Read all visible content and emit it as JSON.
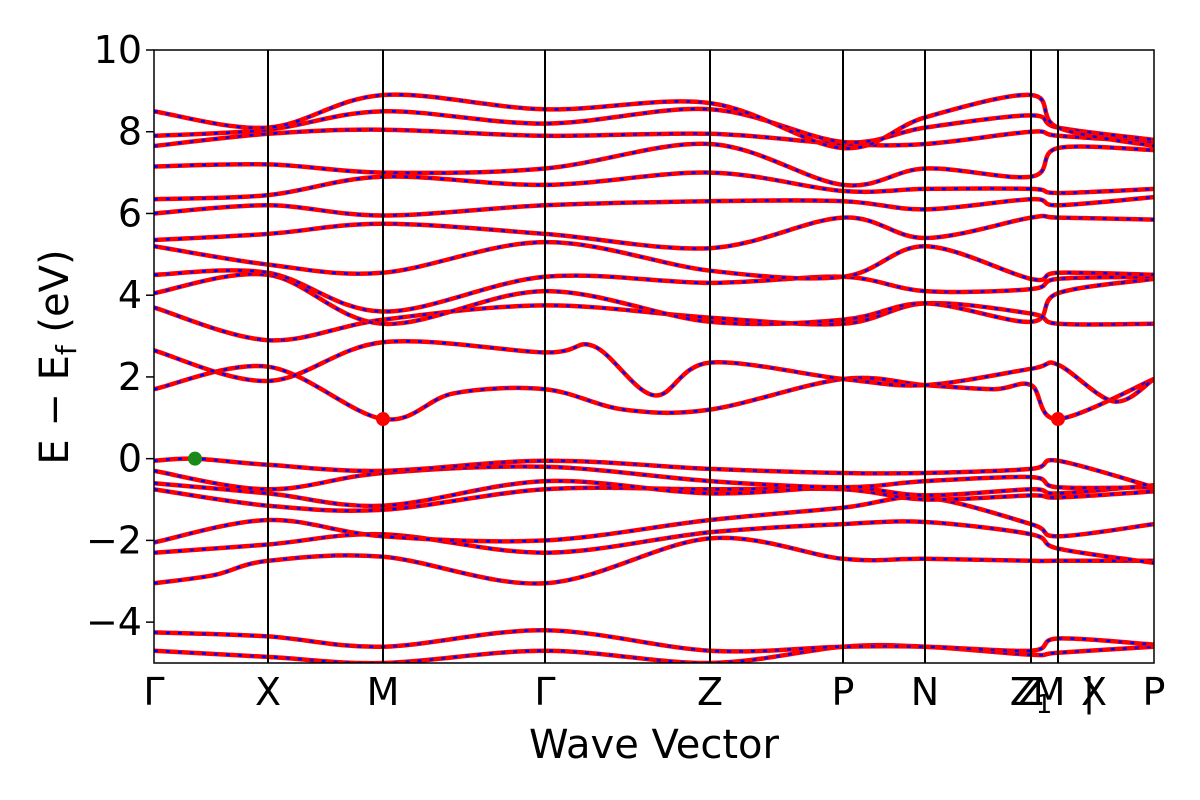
{
  "chart_data": {
    "type": "line",
    "title": "",
    "xlabel": "Wave Vector",
    "ylabel_parts": {
      "main": "E − E",
      "sub": "f",
      "unit": " (eV)"
    },
    "ylim": [
      -5,
      10
    ],
    "yticks": [
      -4,
      -2,
      0,
      2,
      4,
      6,
      8,
      10
    ],
    "ytick_labels": [
      "−4",
      "−2",
      "0",
      "2",
      "4",
      "6",
      "8",
      "10"
    ],
    "grid": false,
    "legend": "none",
    "x_range": [
      0,
      1
    ],
    "kpoint_labels": [
      {
        "x": 0.0,
        "label": "Γ"
      },
      {
        "x": 0.114,
        "label": "X"
      },
      {
        "x": 0.229,
        "label": "M"
      },
      {
        "x": 0.391,
        "label": "Γ"
      },
      {
        "x": 0.556,
        "label": "Z"
      },
      {
        "x": 0.689,
        "label": "P"
      },
      {
        "x": 0.771,
        "label": "N"
      },
      {
        "x": 0.877,
        "label": "Z"
      },
      {
        "x": 0.895,
        "label": "M"
      },
      {
        "x": 0.935,
        "label": "|"
      },
      {
        "x": 0.94,
        "label": "X"
      },
      {
        "x": 1.0,
        "label": "P"
      }
    ],
    "kpoint_label_overlay": {
      "x": 0.877,
      "label": "Z",
      "sub": "1"
    },
    "vertical_lines_x": [
      0.114,
      0.229,
      0.391,
      0.556,
      0.689,
      0.771,
      0.877,
      0.904
    ],
    "markers": [
      {
        "x": 0.041,
        "y": 0.0,
        "color": "#1a8a1a",
        "role": "valence band maximum"
      },
      {
        "x": 0.229,
        "y": 0.97,
        "color": "#ff0000",
        "role": "conduction band minimum"
      },
      {
        "x": 0.904,
        "y": 0.97,
        "color": "#ff0000",
        "role": "conduction band minimum"
      }
    ],
    "series_colors": {
      "main": "#ff0000",
      "dash": "#0000ff"
    },
    "series": [
      {
        "x": [
          0,
          0.114,
          0.229,
          0.391,
          0.556,
          0.689,
          0.771,
          0.877,
          0.904,
          1
        ],
        "y": [
          -4.7,
          -4.85,
          -5.0,
          -4.7,
          -5.0,
          -4.6,
          -4.6,
          -4.8,
          -4.75,
          -4.6
        ]
      },
      {
        "x": [
          0,
          0.114,
          0.229,
          0.391,
          0.556,
          0.689,
          0.771,
          0.877,
          0.904,
          1
        ],
        "y": [
          -4.25,
          -4.35,
          -4.6,
          -4.2,
          -4.7,
          -4.6,
          -4.6,
          -4.7,
          -4.4,
          -4.55
        ]
      },
      {
        "x": [
          0,
          0.06,
          0.114,
          0.229,
          0.391,
          0.556,
          0.689,
          0.771,
          0.877,
          0.904,
          1
        ],
        "y": [
          -3.05,
          -2.85,
          -2.5,
          -2.4,
          -3.05,
          -1.95,
          -2.45,
          -2.45,
          -2.5,
          -2.5,
          -2.5
        ]
      },
      {
        "x": [
          0,
          0.114,
          0.229,
          0.391,
          0.556,
          0.689,
          0.771,
          0.877,
          0.904,
          1
        ],
        "y": [
          -2.3,
          -2.1,
          -1.85,
          -2.3,
          -1.8,
          -1.6,
          -1.55,
          -1.85,
          -2.2,
          -2.55
        ]
      },
      {
        "x": [
          0,
          0.114,
          0.229,
          0.391,
          0.556,
          0.689,
          0.771,
          0.877,
          0.904,
          1
        ],
        "y": [
          -2.05,
          -1.5,
          -1.9,
          -2.0,
          -1.5,
          -1.2,
          -0.95,
          -1.6,
          -1.9,
          -1.6
        ]
      },
      {
        "x": [
          0,
          0.114,
          0.229,
          0.391,
          0.556,
          0.689,
          0.771,
          0.877,
          0.904,
          1
        ],
        "y": [
          -0.75,
          -1.15,
          -1.25,
          -0.75,
          -0.75,
          -0.75,
          -1.0,
          -0.9,
          -0.95,
          -0.8
        ]
      },
      {
        "x": [
          0,
          0.114,
          0.229,
          0.391,
          0.556,
          0.689,
          0.771,
          0.877,
          0.904,
          1
        ],
        "y": [
          -0.6,
          -0.85,
          -1.15,
          -0.55,
          -0.85,
          -0.7,
          -0.9,
          -0.75,
          -0.85,
          -0.65
        ]
      },
      {
        "x": [
          0,
          0.114,
          0.229,
          0.391,
          0.556,
          0.689,
          0.771,
          0.877,
          0.904,
          1
        ],
        "y": [
          -0.3,
          -0.75,
          -0.35,
          -0.2,
          -0.55,
          -0.7,
          -0.55,
          -0.45,
          -0.7,
          -0.7
        ]
      },
      {
        "x": [
          0,
          0.041,
          0.114,
          0.229,
          0.391,
          0.556,
          0.689,
          0.771,
          0.877,
          0.904,
          1
        ],
        "y": [
          -0.05,
          0.0,
          -0.15,
          -0.3,
          -0.05,
          -0.25,
          -0.35,
          -0.35,
          -0.25,
          -0.05,
          -0.7
        ]
      },
      {
        "x": [
          0,
          0.114,
          0.229,
          0.3,
          0.391,
          0.47,
          0.556,
          0.689,
          0.771,
          0.84,
          0.877,
          0.904,
          1
        ],
        "y": [
          1.7,
          2.25,
          0.97,
          1.6,
          1.7,
          1.2,
          1.2,
          1.95,
          1.8,
          1.7,
          1.8,
          0.97,
          1.95
        ]
      },
      {
        "x": [
          0,
          0.114,
          0.229,
          0.391,
          0.44,
          0.5,
          0.556,
          0.689,
          0.771,
          0.877,
          0.904,
          0.96,
          1
        ],
        "y": [
          2.65,
          1.9,
          2.85,
          2.6,
          2.75,
          1.55,
          2.35,
          1.95,
          1.8,
          2.2,
          2.3,
          1.4,
          1.95
        ]
      },
      {
        "x": [
          0,
          0.114,
          0.229,
          0.391,
          0.556,
          0.689,
          0.771,
          0.877,
          0.904,
          1
        ],
        "y": [
          3.7,
          2.9,
          3.4,
          3.75,
          3.45,
          3.3,
          3.8,
          3.55,
          3.3,
          3.3
        ]
      },
      {
        "x": [
          0,
          0.114,
          0.229,
          0.391,
          0.556,
          0.689,
          0.771,
          0.877,
          0.904,
          1
        ],
        "y": [
          4.05,
          4.5,
          3.3,
          4.1,
          3.35,
          3.4,
          3.8,
          3.35,
          4.05,
          4.4
        ]
      },
      {
        "x": [
          0,
          0.114,
          0.229,
          0.391,
          0.556,
          0.689,
          0.771,
          0.877,
          0.904,
          1
        ],
        "y": [
          4.5,
          4.55,
          3.6,
          4.45,
          4.3,
          4.45,
          4.1,
          4.15,
          4.4,
          4.45
        ]
      },
      {
        "x": [
          0,
          0.114,
          0.229,
          0.391,
          0.556,
          0.689,
          0.771,
          0.877,
          0.904,
          1
        ],
        "y": [
          5.2,
          4.75,
          4.55,
          5.3,
          4.6,
          4.45,
          5.2,
          4.4,
          4.55,
          4.5
        ]
      },
      {
        "x": [
          0,
          0.114,
          0.229,
          0.391,
          0.556,
          0.689,
          0.771,
          0.877,
          0.904,
          1
        ],
        "y": [
          5.35,
          5.5,
          5.75,
          5.5,
          5.15,
          5.9,
          5.4,
          5.9,
          5.9,
          5.85
        ]
      },
      {
        "x": [
          0,
          0.114,
          0.229,
          0.391,
          0.556,
          0.689,
          0.771,
          0.877,
          0.904,
          1
        ],
        "y": [
          6.0,
          6.2,
          5.95,
          6.2,
          6.3,
          6.3,
          6.1,
          6.35,
          6.2,
          6.4
        ]
      },
      {
        "x": [
          0,
          0.114,
          0.229,
          0.391,
          0.556,
          0.689,
          0.771,
          0.877,
          0.904,
          1
        ],
        "y": [
          6.35,
          6.45,
          6.9,
          6.7,
          7.0,
          6.55,
          6.6,
          6.6,
          6.5,
          6.6
        ]
      },
      {
        "x": [
          0,
          0.114,
          0.229,
          0.391,
          0.556,
          0.689,
          0.771,
          0.877,
          0.904,
          1
        ],
        "y": [
          7.15,
          7.2,
          7.0,
          7.1,
          7.7,
          6.7,
          7.1,
          6.9,
          7.6,
          7.55
        ]
      },
      {
        "x": [
          0,
          0.114,
          0.229,
          0.391,
          0.556,
          0.689,
          0.771,
          0.877,
          0.904,
          1
        ],
        "y": [
          7.65,
          7.95,
          8.05,
          7.9,
          7.95,
          7.7,
          7.7,
          8.0,
          7.9,
          7.75
        ]
      },
      {
        "x": [
          0,
          0.114,
          0.229,
          0.391,
          0.556,
          0.689,
          0.771,
          0.877,
          0.904,
          1
        ],
        "y": [
          7.9,
          8.05,
          8.5,
          8.2,
          8.55,
          7.75,
          8.1,
          8.4,
          8.1,
          7.8
        ]
      },
      {
        "x": [
          0,
          0.114,
          0.229,
          0.391,
          0.556,
          0.689,
          0.771,
          0.877,
          0.904,
          1
        ],
        "y": [
          8.5,
          8.1,
          8.9,
          8.55,
          8.7,
          7.6,
          8.35,
          8.9,
          8.1,
          7.65
        ]
      }
    ]
  }
}
